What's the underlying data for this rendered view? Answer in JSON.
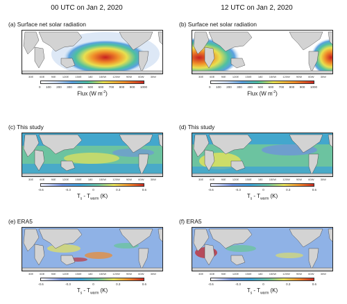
{
  "col_titles": [
    "00 UTC on Jan 2, 2020",
    "12 UTC on Jan 2, 2020"
  ],
  "panels": {
    "a": "(a) Surface net solar radiation",
    "b": "(b) Surface net solar radiation",
    "c": "(c) This study",
    "d": "(d) This study",
    "e": "(e) ERA5",
    "f": "(f) ERA5"
  },
  "lon_ticks": [
    "30E",
    "60E",
    "90E",
    "120E",
    "150E",
    "180",
    "150W",
    "120W",
    "90W",
    "60W",
    "30W"
  ],
  "flux_ticks": [
    "0",
    "100",
    "200",
    "300",
    "400",
    "500",
    "600",
    "700",
    "800",
    "900",
    "1000"
  ],
  "flux_label": "Flux (W m",
  "flux_label_sup": "-2",
  "flux_label_end": ")",
  "t_ticks": [
    "-0.6",
    "-0.3",
    "0",
    "0.3",
    "0.6"
  ],
  "t_label_a": "T",
  "t_label_s": "s",
  "t_label_b": " - T",
  "t_label_warm": "warm",
  "t_label_end": " (K)",
  "colors": {
    "ocean_white": "#ffffff",
    "land_gray": "#d3d3d3",
    "anom_scale": [
      "#f7f7ff",
      "#6f8fe0",
      "#3aa0d8",
      "#6cc3a0",
      "#e6e35a",
      "#f08a2a",
      "#c62020"
    ],
    "flux_scale": [
      "#ffffff",
      "#c8d8f0",
      "#5aa0e0",
      "#4ec0a0",
      "#e8e050",
      "#f0902a",
      "#c82020"
    ]
  }
}
